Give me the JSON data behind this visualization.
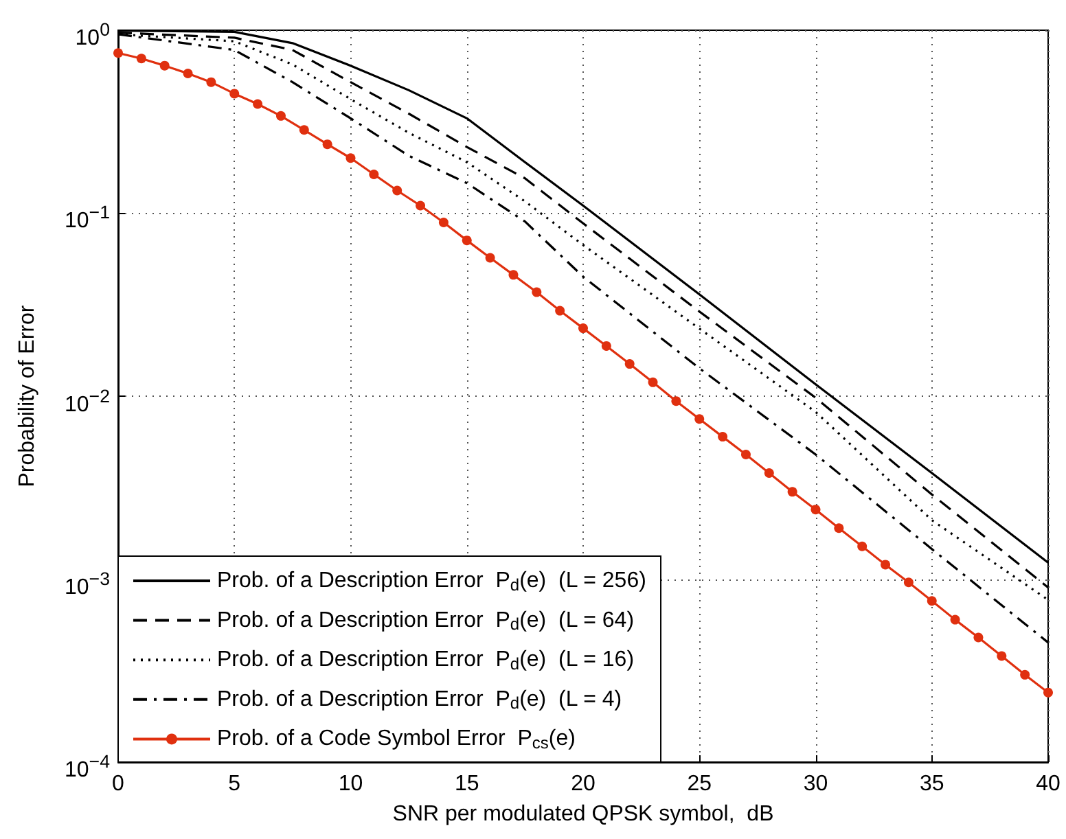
{
  "chart_data": {
    "type": "line",
    "xlabel": "SNR per modulated QPSK symbol,  dB",
    "ylabel": "Probability of Error",
    "log": "y",
    "grid": true,
    "legend": "bottom left",
    "xlim": [
      0,
      40
    ],
    "xticks": [
      0,
      5,
      10,
      15,
      20,
      25,
      30,
      35,
      40
    ],
    "ylim": [
      0.0001,
      1
    ],
    "yticks": [
      {
        "value": 0.0001,
        "label": "10$^{−4}$"
      },
      {
        "value": 0.001,
        "label": "10$^{−3}$"
      },
      {
        "value": 0.01,
        "label": "10$^{−2}$"
      },
      {
        "value": 0.1,
        "label": "10$^{−1}$"
      },
      {
        "value": 1,
        "label": "10$^{0}$"
      }
    ],
    "series": [
      {
        "name": "Prob. of a Description Error  P$_{d}$(e)  (L = 256)",
        "color": "#000000",
        "line_style": "solid",
        "marker": "none",
        "x": [
          0,
          5,
          7.5,
          10,
          12.5,
          15,
          17.5,
          20,
          25,
          30,
          35,
          40
        ],
        "values": [
          0.995,
          0.98,
          0.85,
          0.64,
          0.47,
          0.33,
          0.19,
          0.11,
          0.036,
          0.0116,
          0.0038,
          0.00123
        ]
      },
      {
        "name": "Prob. of a Description Error  P$_{d}$(e)  (L = 64)",
        "color": "#000000",
        "line_style": "dashed",
        "marker": "none",
        "x": [
          0,
          5,
          7.5,
          10,
          12.5,
          15,
          17.5,
          20,
          25,
          30,
          35,
          40
        ],
        "values": [
          0.97,
          0.91,
          0.78,
          0.52,
          0.35,
          0.23,
          0.155,
          0.088,
          0.029,
          0.0098,
          0.0029,
          0.0009
        ]
      },
      {
        "name": "Prob. of a Description Error  P$_{d}$(e)  (L = 16)",
        "color": "#000000",
        "line_style": "dotted",
        "marker": "none",
        "x": [
          0,
          5,
          7.5,
          10,
          12.5,
          15,
          17.5,
          20,
          25,
          30,
          35,
          40
        ],
        "values": [
          0.95,
          0.87,
          0.65,
          0.42,
          0.275,
          0.19,
          0.116,
          0.067,
          0.0234,
          0.0082,
          0.0021,
          0.00077
        ]
      },
      {
        "name": "Prob. of a Description Error  P$_{d}$(e)  (L = 4)",
        "color": "#000000",
        "line_style": "dashdot",
        "marker": "none",
        "x": [
          0,
          5,
          7.5,
          10,
          12.5,
          15,
          17.5,
          20,
          25,
          30,
          35,
          40
        ],
        "values": [
          0.95,
          0.78,
          0.52,
          0.33,
          0.206,
          0.146,
          0.09,
          0.045,
          0.0142,
          0.0048,
          0.00146,
          0.00045
        ]
      },
      {
        "name": "Prob. of a Code Symbol Error  P$_{cs}$(e)",
        "color": "#e0300f",
        "line_style": "solid",
        "marker": "circle",
        "x": [
          0,
          1,
          2,
          3,
          4,
          5,
          6,
          7,
          8,
          9,
          10,
          11,
          12,
          13,
          14,
          15,
          16,
          17,
          18,
          19,
          20,
          21,
          22,
          23,
          24,
          25,
          26,
          27,
          28,
          29,
          30,
          31,
          32,
          33,
          34,
          35,
          36,
          37,
          38,
          39,
          40
        ],
        "values": [
          0.75,
          0.7,
          0.64,
          0.58,
          0.52,
          0.45,
          0.395,
          0.34,
          0.285,
          0.238,
          0.2,
          0.163,
          0.133,
          0.11,
          0.089,
          0.071,
          0.057,
          0.046,
          0.037,
          0.0293,
          0.0235,
          0.0188,
          0.015,
          0.0119,
          0.0094,
          0.0075,
          0.006,
          0.0048,
          0.0038,
          0.003,
          0.0024,
          0.0019,
          0.00151,
          0.0012,
          0.00096,
          0.00076,
          0.0006,
          0.00048,
          0.00038,
          0.0003,
          0.00024
        ]
      }
    ]
  }
}
